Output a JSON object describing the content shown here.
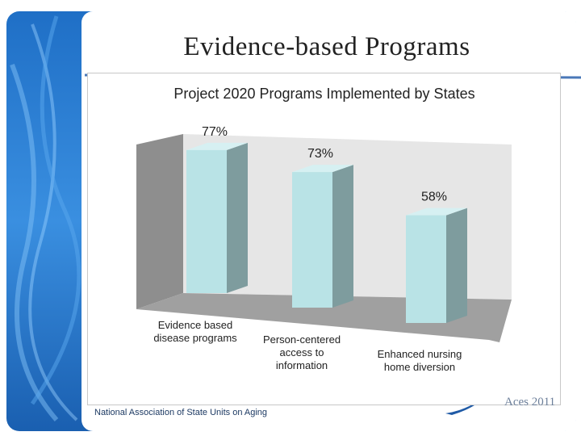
{
  "slide": {
    "title": "Evidence-based Programs",
    "footer_org": "National Association of State Units on Aging",
    "footer_fragment": "Aces 2011"
  },
  "colors": {
    "bar_front": "#b9e3e6",
    "bar_side": "#7e9c9e",
    "bar_top": "#d6f0f2",
    "back_wall": "#e6e6e6",
    "side_wall": "#8e8e8e",
    "floor": "#a0a0a0"
  },
  "chart_data": {
    "type": "bar",
    "title": "Project 2020 Programs Implemented by States",
    "categories": [
      [
        "Evidence based",
        "disease programs"
      ],
      [
        "Person-centered",
        "access to",
        "information"
      ],
      [
        "Enhanced nursing",
        "home diversion"
      ]
    ],
    "values": [
      77,
      73,
      58
    ],
    "data_labels": [
      "77%",
      "73%",
      "58%"
    ],
    "unit": "%",
    "ylim": [
      0,
      100
    ],
    "grid": false,
    "legend": "none",
    "style": "3d-column"
  }
}
